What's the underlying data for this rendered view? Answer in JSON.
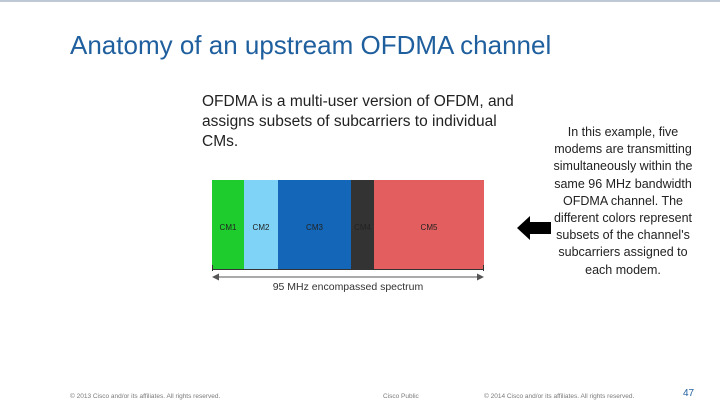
{
  "slide": {
    "title": "Anatomy of an upstream OFDMA channel",
    "intro": "OFDMA is a multi-user version of OFDM, and assigns subsets of subcarriers to individual CMs.",
    "side_note": "In this example, five modems are transmitting simultaneously within the same 96 MHz bandwidth OFDMA channel. The different colors represent subsets of the channel's subcarriers assigned to each modem."
  },
  "diagram": {
    "blocks": [
      {
        "label": "CM1",
        "color": "#1fcc2e",
        "share": 0.118
      },
      {
        "label": "CM2",
        "color": "#7fd3f7",
        "share": 0.125
      },
      {
        "label": "CM3",
        "color": "#1467b8",
        "share": 0.268
      },
      {
        "label": "CM4",
        "color": "#333333",
        "share": 0.085
      },
      {
        "label": "CM5",
        "color": "#e35f5f",
        "share": 0.404
      }
    ],
    "span_label": "95 MHz encompassed spectrum",
    "pointer_color": "#000000"
  },
  "footer": {
    "left": "© 2013 Cisco and/or its affiliates. All rights reserved.",
    "mid": "Cisco Public",
    "copyright": "© 2014 Cisco and/or its affiliates. All rights reserved.",
    "page": "47"
  }
}
